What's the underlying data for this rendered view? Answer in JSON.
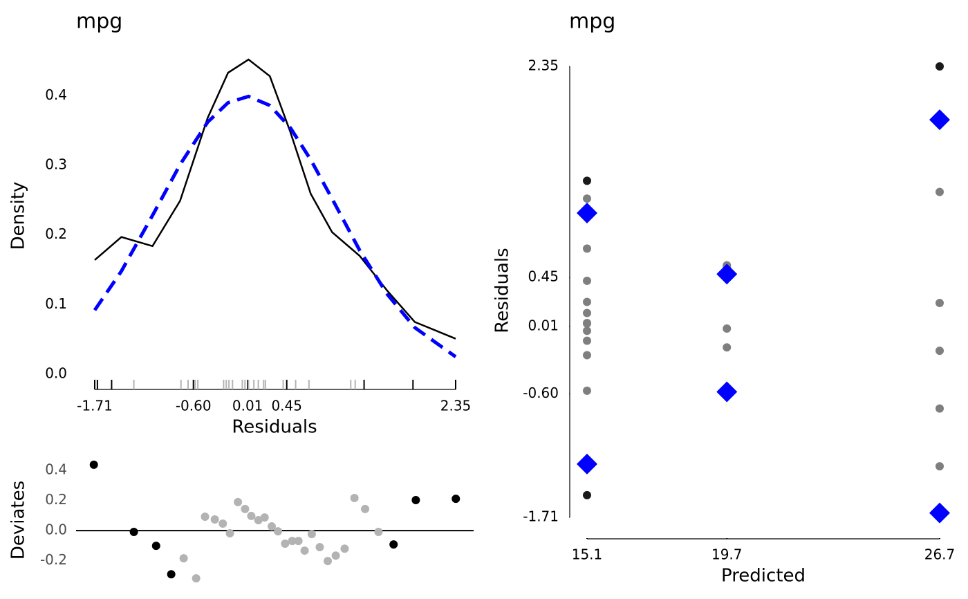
{
  "chart_data": [
    {
      "type": "line",
      "title": "mpg",
      "x_label": "Residuals",
      "y_label": "Density",
      "x": [
        -1.71,
        -1.41,
        -1.06,
        -0.75,
        -0.44,
        -0.21,
        0.02,
        0.26,
        0.49,
        0.72,
        0.96,
        1.27,
        1.58,
        1.89,
        2.35
      ],
      "series": [
        {
          "color": "#000000",
          "dashed": false,
          "values": [
            0.164,
            0.197,
            0.184,
            0.249,
            0.368,
            0.433,
            0.452,
            0.428,
            0.348,
            0.259,
            0.204,
            0.17,
            0.12,
            0.075,
            0.051
          ]
        },
        {
          "color": "#0000ff",
          "dashed": true,
          "values": [
            0.092,
            0.148,
            0.228,
            0.301,
            0.362,
            0.39,
            0.399,
            0.386,
            0.354,
            0.308,
            0.252,
            0.178,
            0.115,
            0.067,
            0.025
          ]
        }
      ],
      "rug": [
        {
          "color": "#b3b3b3",
          "values": [
            -1.27,
            -0.74,
            -0.66,
            -0.58,
            -0.55,
            -0.26,
            -0.23,
            -0.2,
            -0.16,
            -0.05,
            -0.02,
            0.02,
            0.08,
            0.13,
            0.19,
            0.21,
            0.41,
            0.55,
            0.7,
            1.17,
            1.22
          ]
        },
        {
          "color": "#000000",
          "values": [
            -1.71,
            -1.68,
            -1.52,
            1.32,
            1.87,
            2.35
          ]
        }
      ],
      "xlim": [
        -1.71,
        2.35
      ],
      "ylim": [
        0,
        0.455
      ],
      "xticks": [
        -1.71,
        {
          "value": -0.6,
          "label": "-0.60"
        },
        0.01,
        0.45,
        2.35
      ],
      "yticks": [
        {
          "value": 0,
          "label": "0.0"
        },
        0.1,
        0.2,
        0.3,
        0.4
      ]
    },
    {
      "type": "scatter",
      "y_label": "Deviates",
      "reference_line": 0,
      "series": [
        {
          "color": "#000000",
          "x": [
            -1.72,
            -1.27,
            -1.02,
            -0.85,
            1.65,
            1.9,
            2.35
          ],
          "values": [
            0.437,
            -0.009,
            -0.101,
            -0.29,
            -0.092,
            0.202,
            0.211
          ]
        },
        {
          "color": "#b3b3b3",
          "x": [
            -0.71,
            -0.57,
            -0.47,
            -0.36,
            -0.27,
            -0.19,
            -0.1,
            -0.02,
            0.05,
            0.13,
            0.2,
            0.28,
            0.35,
            0.43,
            0.51,
            0.58,
            0.65,
            0.73,
            0.82,
            0.91,
            1.0,
            1.1,
            1.21,
            1.33,
            1.48
          ],
          "values": [
            -0.184,
            -0.317,
            0.092,
            0.074,
            0.046,
            -0.018,
            0.189,
            0.143,
            0.097,
            0.069,
            0.087,
            0.028,
            -0.005,
            -0.087,
            -0.069,
            -0.069,
            -0.133,
            -0.023,
            -0.11,
            -0.202,
            -0.166,
            -0.12,
            0.216,
            0.143,
            -0.009
          ]
        }
      ],
      "xlim": [
        -1.92,
        2.55
      ],
      "ylim": [
        -0.33,
        0.45
      ],
      "yticks": [
        -0.2,
        {
          "value": 0,
          "label": "0.0"
        },
        0.2,
        0.4
      ]
    },
    {
      "type": "scatter",
      "title": "mpg",
      "x_label": "Predicted",
      "y_label": "Residuals",
      "series": [
        {
          "color": "#7f7f7f",
          "marker": "circle",
          "x": [
            15.1,
            15.1,
            15.1,
            15.1,
            15.1,
            15.1,
            15.1,
            15.1,
            15.1,
            15.1,
            15.1,
            19.7,
            19.7,
            19.7,
            19.7,
            26.7,
            26.7,
            26.7,
            26.7,
            26.7
          ],
          "values": [
            1.16,
            0.71,
            0.42,
            0.23,
            0.13,
            0.04,
            0.035,
            -0.03,
            -0.12,
            -0.25,
            -0.57,
            0.56,
            0.54,
            -0.01,
            -0.18,
            1.22,
            0.22,
            -0.21,
            -0.73,
            -1.25
          ]
        },
        {
          "color": "#1a1a1a",
          "marker": "circle",
          "x": [
            15.1,
            15.1,
            26.7
          ],
          "values": [
            1.32,
            -1.51,
            2.35
          ]
        },
        {
          "color": "#0000ff",
          "marker": "diamond",
          "x": [
            15.1,
            15.1,
            19.7,
            19.7,
            26.7,
            26.7
          ],
          "values": [
            1.03,
            -1.23,
            0.48,
            -0.58,
            1.87,
            -1.67
          ]
        }
      ],
      "xlim": [
        15.1,
        26.7
      ],
      "ylim": [
        -1.71,
        2.35
      ],
      "xticks": [
        15.1,
        19.7,
        26.7
      ],
      "yticks": [
        -1.71,
        {
          "value": -0.6,
          "label": "-0.60"
        },
        0.01,
        0.45,
        2.35
      ]
    }
  ]
}
